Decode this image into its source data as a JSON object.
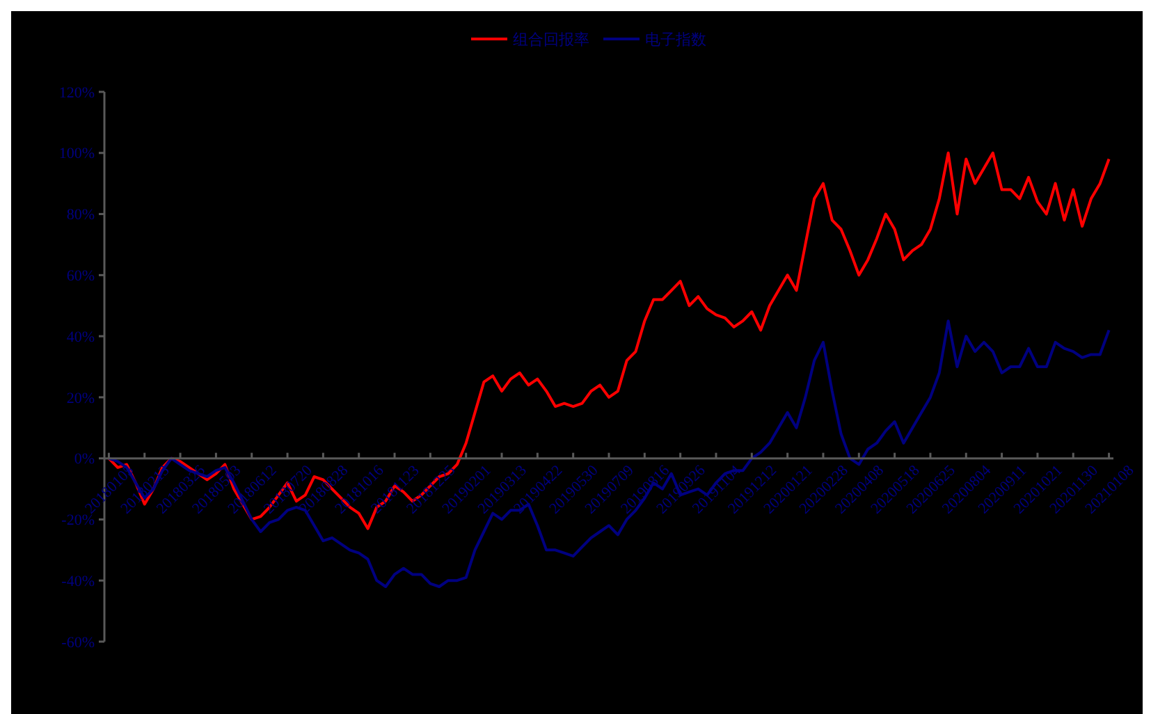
{
  "chart_data": {
    "type": "line",
    "legend": "top",
    "grid": false,
    "categories": [
      "20180105",
      null,
      null,
      null,
      "20180213",
      null,
      null,
      null,
      "20180326",
      null,
      null,
      null,
      "20180503",
      null,
      null,
      null,
      "20180612",
      null,
      null,
      null,
      "20180720",
      null,
      null,
      null,
      "20180828",
      null,
      null,
      null,
      "20181016",
      null,
      null,
      null,
      "20181123",
      null,
      null,
      null,
      "20181225",
      null,
      null,
      null,
      "20190201",
      null,
      null,
      null,
      "20190313",
      null,
      null,
      null,
      "20190422",
      null,
      null,
      null,
      "20190530",
      null,
      null,
      null,
      "20190709",
      null,
      null,
      null,
      "20190816",
      null,
      null,
      null,
      "20190926",
      null,
      null,
      null,
      "20191104",
      null,
      null,
      null,
      "20191212",
      null,
      null,
      null,
      "20200121",
      null,
      null,
      null,
      "20200228",
      null,
      null,
      null,
      "20200408",
      null,
      null,
      null,
      "20200518",
      null,
      null,
      null,
      "20200625",
      null,
      null,
      null,
      "20200804",
      null,
      null,
      null,
      "20200911",
      null,
      null,
      null,
      "20201021",
      null,
      null,
      null,
      "20201130",
      null,
      null,
      null,
      "20210108"
    ],
    "ylim": [
      -60,
      120
    ],
    "yticks": [
      {
        "value": -60,
        "label": "-60%"
      },
      {
        "value": -40,
        "label": "-40%"
      },
      {
        "value": -20,
        "label": "-20%"
      },
      {
        "value": 0,
        "label": "0%"
      },
      {
        "value": 20,
        "label": "20%"
      },
      {
        "value": 40,
        "label": "40%"
      },
      {
        "value": 60,
        "label": "60%"
      },
      {
        "value": 80,
        "label": "80%"
      },
      {
        "value": 100,
        "label": "100%"
      },
      {
        "value": 120,
        "label": "120%"
      }
    ],
    "series": [
      {
        "name": "组合回报率",
        "color": "#ff0000",
        "values": [
          0,
          -3,
          -2,
          -8,
          -15,
          -10,
          -3,
          0,
          -1,
          -3,
          -5,
          -7,
          -5,
          -2,
          -10,
          -15,
          -20,
          -19,
          -16,
          -12,
          -8,
          -14,
          -12,
          -6,
          -7,
          -10,
          -13,
          -16,
          -18,
          -23,
          -16,
          -14,
          -9,
          -11,
          -14,
          -12,
          -9,
          -6,
          -5,
          -2,
          5,
          15,
          25,
          27,
          22,
          26,
          28,
          24,
          26,
          22,
          17,
          18,
          17,
          18,
          22,
          24,
          20,
          22,
          32,
          35,
          45,
          52,
          52,
          55,
          58,
          50,
          53,
          49,
          47,
          46,
          43,
          45,
          48,
          42,
          50,
          55,
          60,
          55,
          70,
          85,
          90,
          78,
          75,
          68,
          60,
          65,
          72,
          80,
          75,
          65,
          68,
          70,
          75,
          85,
          100,
          80,
          98,
          90,
          95,
          100,
          88,
          88,
          85,
          92,
          84,
          80,
          90,
          78,
          88,
          76,
          85,
          90,
          98
        ]
      },
      {
        "name": "电子指数",
        "color": "#000080",
        "values": [
          0,
          -1,
          -3,
          -8,
          -13,
          -10,
          -4,
          0,
          -2,
          -4,
          -5,
          -6,
          -4,
          -3,
          -8,
          -14,
          -20,
          -24,
          -21,
          -20,
          -17,
          -16,
          -17,
          -22,
          -27,
          -26,
          -28,
          -30,
          -31,
          -33,
          -40,
          -42,
          -38,
          -36,
          -38,
          -38,
          -41,
          -42,
          -40,
          -40,
          -39,
          -30,
          -24,
          -18,
          -20,
          -17,
          -17,
          -15,
          -22,
          -30,
          -30,
          -31,
          -32,
          -29,
          -26,
          -24,
          -22,
          -25,
          -20,
          -17,
          -13,
          -8,
          -10,
          -5,
          -12,
          -11,
          -10,
          -12,
          -8,
          -5,
          -4,
          -4,
          0,
          2,
          5,
          10,
          15,
          10,
          20,
          32,
          38,
          22,
          8,
          0,
          -2,
          3,
          5,
          9,
          12,
          5,
          10,
          15,
          20,
          28,
          45,
          30,
          40,
          35,
          38,
          35,
          28,
          30,
          30,
          36,
          30,
          30,
          38,
          36,
          35,
          33,
          34,
          34,
          42
        ]
      }
    ]
  }
}
